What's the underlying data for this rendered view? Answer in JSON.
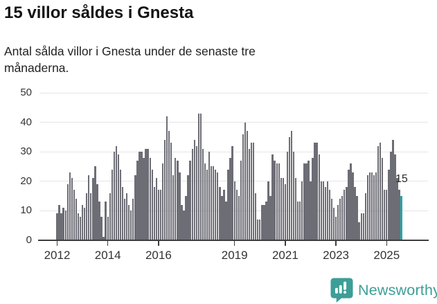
{
  "header": {
    "title": "15 villor såldes i Gnesta",
    "subtitle": "Antal sålda villor i Gnesta under de senaste tre månaderna."
  },
  "chart_data": {
    "type": "bar",
    "title": "15 villor såldes i Gnesta",
    "subtitle": "Antal sålda villor i Gnesta under de senaste tre månaderna.",
    "x_start": "2012-01",
    "x_end": "2025-08",
    "x_granularity": "month",
    "values": [
      9,
      12,
      9,
      11,
      10,
      19,
      23,
      21,
      17,
      14,
      9,
      8,
      12,
      11,
      16,
      22,
      16,
      21,
      25,
      19,
      13,
      8,
      1,
      13,
      8,
      16,
      24,
      30,
      32,
      29,
      24,
      18,
      14,
      16,
      12,
      10,
      14,
      22,
      27,
      30,
      30,
      28,
      31,
      31,
      28,
      24,
      18,
      21,
      17,
      17,
      26,
      34,
      42,
      37,
      33,
      22,
      28,
      27,
      23,
      12,
      10,
      15,
      22,
      27,
      31,
      34,
      32,
      43,
      43,
      31,
      26,
      24,
      30,
      25,
      25,
      24,
      23,
      18,
      15,
      17,
      13,
      24,
      28,
      32,
      20,
      17,
      15,
      27,
      36,
      40,
      37,
      31,
      33,
      33,
      16,
      7,
      7,
      12,
      12,
      13,
      20,
      15,
      29,
      27,
      26,
      26,
      21,
      21,
      19,
      30,
      35,
      37,
      30,
      21,
      13,
      13,
      20,
      26,
      26,
      27,
      20,
      28,
      33,
      33,
      29,
      20,
      20,
      18,
      20,
      17,
      14,
      11,
      8,
      12,
      14,
      15,
      17,
      18,
      24,
      26,
      23,
      18,
      15,
      6,
      9,
      9,
      16,
      22,
      23,
      23,
      22,
      23,
      32,
      33,
      28,
      17,
      17,
      24,
      30,
      34,
      29,
      21,
      17,
      15
    ],
    "highlight_index": 163,
    "highlight_value": 15,
    "highlight_label": "15",
    "ylim": [
      0,
      50
    ],
    "yticks": [
      0,
      10,
      20,
      30,
      40,
      50
    ],
    "xticks": [
      {
        "label": "2012",
        "month": 0
      },
      {
        "label": "2014",
        "month": 24
      },
      {
        "label": "2016",
        "month": 48
      },
      {
        "label": "2019",
        "month": 84
      },
      {
        "label": "2021",
        "month": 108
      },
      {
        "label": "2023",
        "month": 132
      },
      {
        "label": "2025",
        "month": 156
      }
    ],
    "grid": true,
    "legend": "none",
    "colors": {
      "bar": "#6d6d76",
      "highlight": "#2aa6a6",
      "gridline": "#e4e4e4",
      "axis": "#3c3c3c",
      "tick_label": "#333333"
    }
  },
  "footer": {
    "brand": "Newsworthy",
    "brand_color": "#3d9e98",
    "logo_icon": "newsworthy-speech-bubble-bar-chart-icon"
  }
}
